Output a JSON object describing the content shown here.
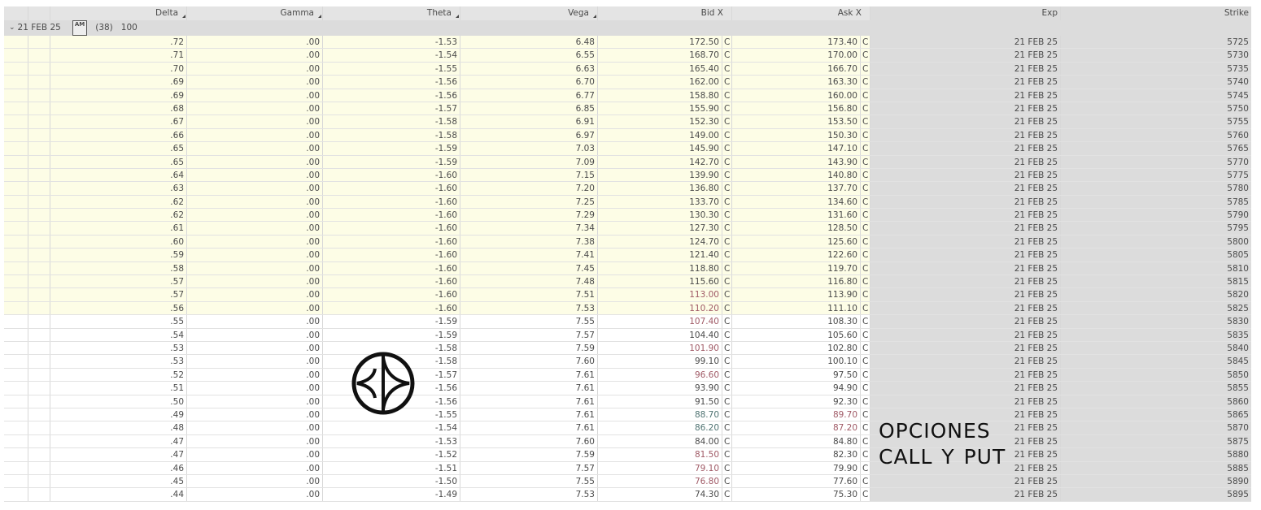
{
  "columns": {
    "delta": "Delta",
    "gamma": "Gamma",
    "theta": "Theta",
    "vega": "Vega",
    "bid": "Bid X",
    "ask": "Ask X",
    "exp": "Exp",
    "strike": "Strike"
  },
  "group": {
    "label": "21 FEB 25",
    "badge": "AM",
    "count": "(38)",
    "multiplier": "100"
  },
  "exchange_code": "C",
  "tone_colors": {
    "r": "#a05a66",
    "g": "#4f7372"
  },
  "highlight_color": "#fdfde6",
  "watermark": {
    "text": "OPCIONES CALL Y PUT"
  },
  "rows": [
    [
      ".72",
      ".00",
      "-1.53",
      "6.48",
      "172.50",
      "",
      "173.40",
      "",
      "21 FEB 25",
      "5725",
      1
    ],
    [
      ".71",
      ".00",
      "-1.54",
      "6.55",
      "168.70",
      "",
      "170.00",
      "",
      "21 FEB 25",
      "5730",
      1
    ],
    [
      ".70",
      ".00",
      "-1.55",
      "6.63",
      "165.40",
      "",
      "166.70",
      "",
      "21 FEB 25",
      "5735",
      1
    ],
    [
      ".69",
      ".00",
      "-1.56",
      "6.70",
      "162.00",
      "",
      "163.30",
      "",
      "21 FEB 25",
      "5740",
      1
    ],
    [
      ".69",
      ".00",
      "-1.56",
      "6.77",
      "158.80",
      "",
      "160.00",
      "",
      "21 FEB 25",
      "5745",
      1
    ],
    [
      ".68",
      ".00",
      "-1.57",
      "6.85",
      "155.90",
      "",
      "156.80",
      "",
      "21 FEB 25",
      "5750",
      1
    ],
    [
      ".67",
      ".00",
      "-1.58",
      "6.91",
      "152.30",
      "",
      "153.50",
      "",
      "21 FEB 25",
      "5755",
      1
    ],
    [
      ".66",
      ".00",
      "-1.58",
      "6.97",
      "149.00",
      "",
      "150.30",
      "",
      "21 FEB 25",
      "5760",
      1
    ],
    [
      ".65",
      ".00",
      "-1.59",
      "7.03",
      "145.90",
      "",
      "147.10",
      "",
      "21 FEB 25",
      "5765",
      1
    ],
    [
      ".65",
      ".00",
      "-1.59",
      "7.09",
      "142.70",
      "",
      "143.90",
      "",
      "21 FEB 25",
      "5770",
      1
    ],
    [
      ".64",
      ".00",
      "-1.60",
      "7.15",
      "139.90",
      "",
      "140.80",
      "",
      "21 FEB 25",
      "5775",
      1
    ],
    [
      ".63",
      ".00",
      "-1.60",
      "7.20",
      "136.80",
      "",
      "137.70",
      "",
      "21 FEB 25",
      "5780",
      1
    ],
    [
      ".62",
      ".00",
      "-1.60",
      "7.25",
      "133.70",
      "",
      "134.60",
      "",
      "21 FEB 25",
      "5785",
      1
    ],
    [
      ".62",
      ".00",
      "-1.60",
      "7.29",
      "130.30",
      "",
      "131.60",
      "",
      "21 FEB 25",
      "5790",
      1
    ],
    [
      ".61",
      ".00",
      "-1.60",
      "7.34",
      "127.30",
      "",
      "128.50",
      "",
      "21 FEB 25",
      "5795",
      1
    ],
    [
      ".60",
      ".00",
      "-1.60",
      "7.38",
      "124.70",
      "",
      "125.60",
      "",
      "21 FEB 25",
      "5800",
      1
    ],
    [
      ".59",
      ".00",
      "-1.60",
      "7.41",
      "121.40",
      "",
      "122.60",
      "",
      "21 FEB 25",
      "5805",
      1
    ],
    [
      ".58",
      ".00",
      "-1.60",
      "7.45",
      "118.80",
      "",
      "119.70",
      "",
      "21 FEB 25",
      "5810",
      1
    ],
    [
      ".57",
      ".00",
      "-1.60",
      "7.48",
      "115.60",
      "",
      "116.80",
      "",
      "21 FEB 25",
      "5815",
      1
    ],
    [
      ".57",
      ".00",
      "-1.60",
      "7.51",
      "113.00",
      "r",
      "113.90",
      "",
      "21 FEB 25",
      "5820",
      1
    ],
    [
      ".56",
      ".00",
      "-1.60",
      "7.53",
      "110.20",
      "r",
      "111.10",
      "",
      "21 FEB 25",
      "5825",
      1
    ],
    [
      ".55",
      ".00",
      "-1.59",
      "7.55",
      "107.40",
      "r",
      "108.30",
      "",
      "21 FEB 25",
      "5830",
      0
    ],
    [
      ".54",
      ".00",
      "-1.59",
      "7.57",
      "104.40",
      "",
      "105.60",
      "",
      "21 FEB 25",
      "5835",
      0
    ],
    [
      ".53",
      ".00",
      "-1.58",
      "7.59",
      "101.90",
      "r",
      "102.80",
      "",
      "21 FEB 25",
      "5840",
      0
    ],
    [
      ".53",
      ".00",
      "-1.58",
      "7.60",
      "99.10",
      "",
      "100.10",
      "",
      "21 FEB 25",
      "5845",
      0
    ],
    [
      ".52",
      ".00",
      "-1.57",
      "7.61",
      "96.60",
      "r",
      "97.50",
      "",
      "21 FEB 25",
      "5850",
      0
    ],
    [
      ".51",
      ".00",
      "-1.56",
      "7.61",
      "93.90",
      "",
      "94.90",
      "",
      "21 FEB 25",
      "5855",
      0
    ],
    [
      ".50",
      ".00",
      "-1.56",
      "7.61",
      "91.50",
      "",
      "92.30",
      "",
      "21 FEB 25",
      "5860",
      0
    ],
    [
      ".49",
      ".00",
      "-1.55",
      "7.61",
      "88.70",
      "g",
      "89.70",
      "r",
      "21 FEB 25",
      "5865",
      0
    ],
    [
      ".48",
      ".00",
      "-1.54",
      "7.61",
      "86.20",
      "g",
      "87.20",
      "r",
      "21 FEB 25",
      "5870",
      0
    ],
    [
      ".47",
      ".00",
      "-1.53",
      "7.60",
      "84.00",
      "",
      "84.80",
      "",
      "21 FEB 25",
      "5875",
      0
    ],
    [
      ".47",
      ".00",
      "-1.52",
      "7.59",
      "81.50",
      "r",
      "82.30",
      "",
      "21 FEB 25",
      "5880",
      0
    ],
    [
      ".46",
      ".00",
      "-1.51",
      "7.57",
      "79.10",
      "r",
      "79.90",
      "",
      "21 FEB 25",
      "5885",
      0
    ],
    [
      ".45",
      ".00",
      "-1.50",
      "7.55",
      "76.80",
      "r",
      "77.60",
      "",
      "21 FEB 25",
      "5890",
      0
    ],
    [
      ".44",
      ".00",
      "-1.49",
      "7.53",
      "74.30",
      "",
      "75.30",
      "",
      "21 FEB 25",
      "5895",
      0
    ]
  ]
}
